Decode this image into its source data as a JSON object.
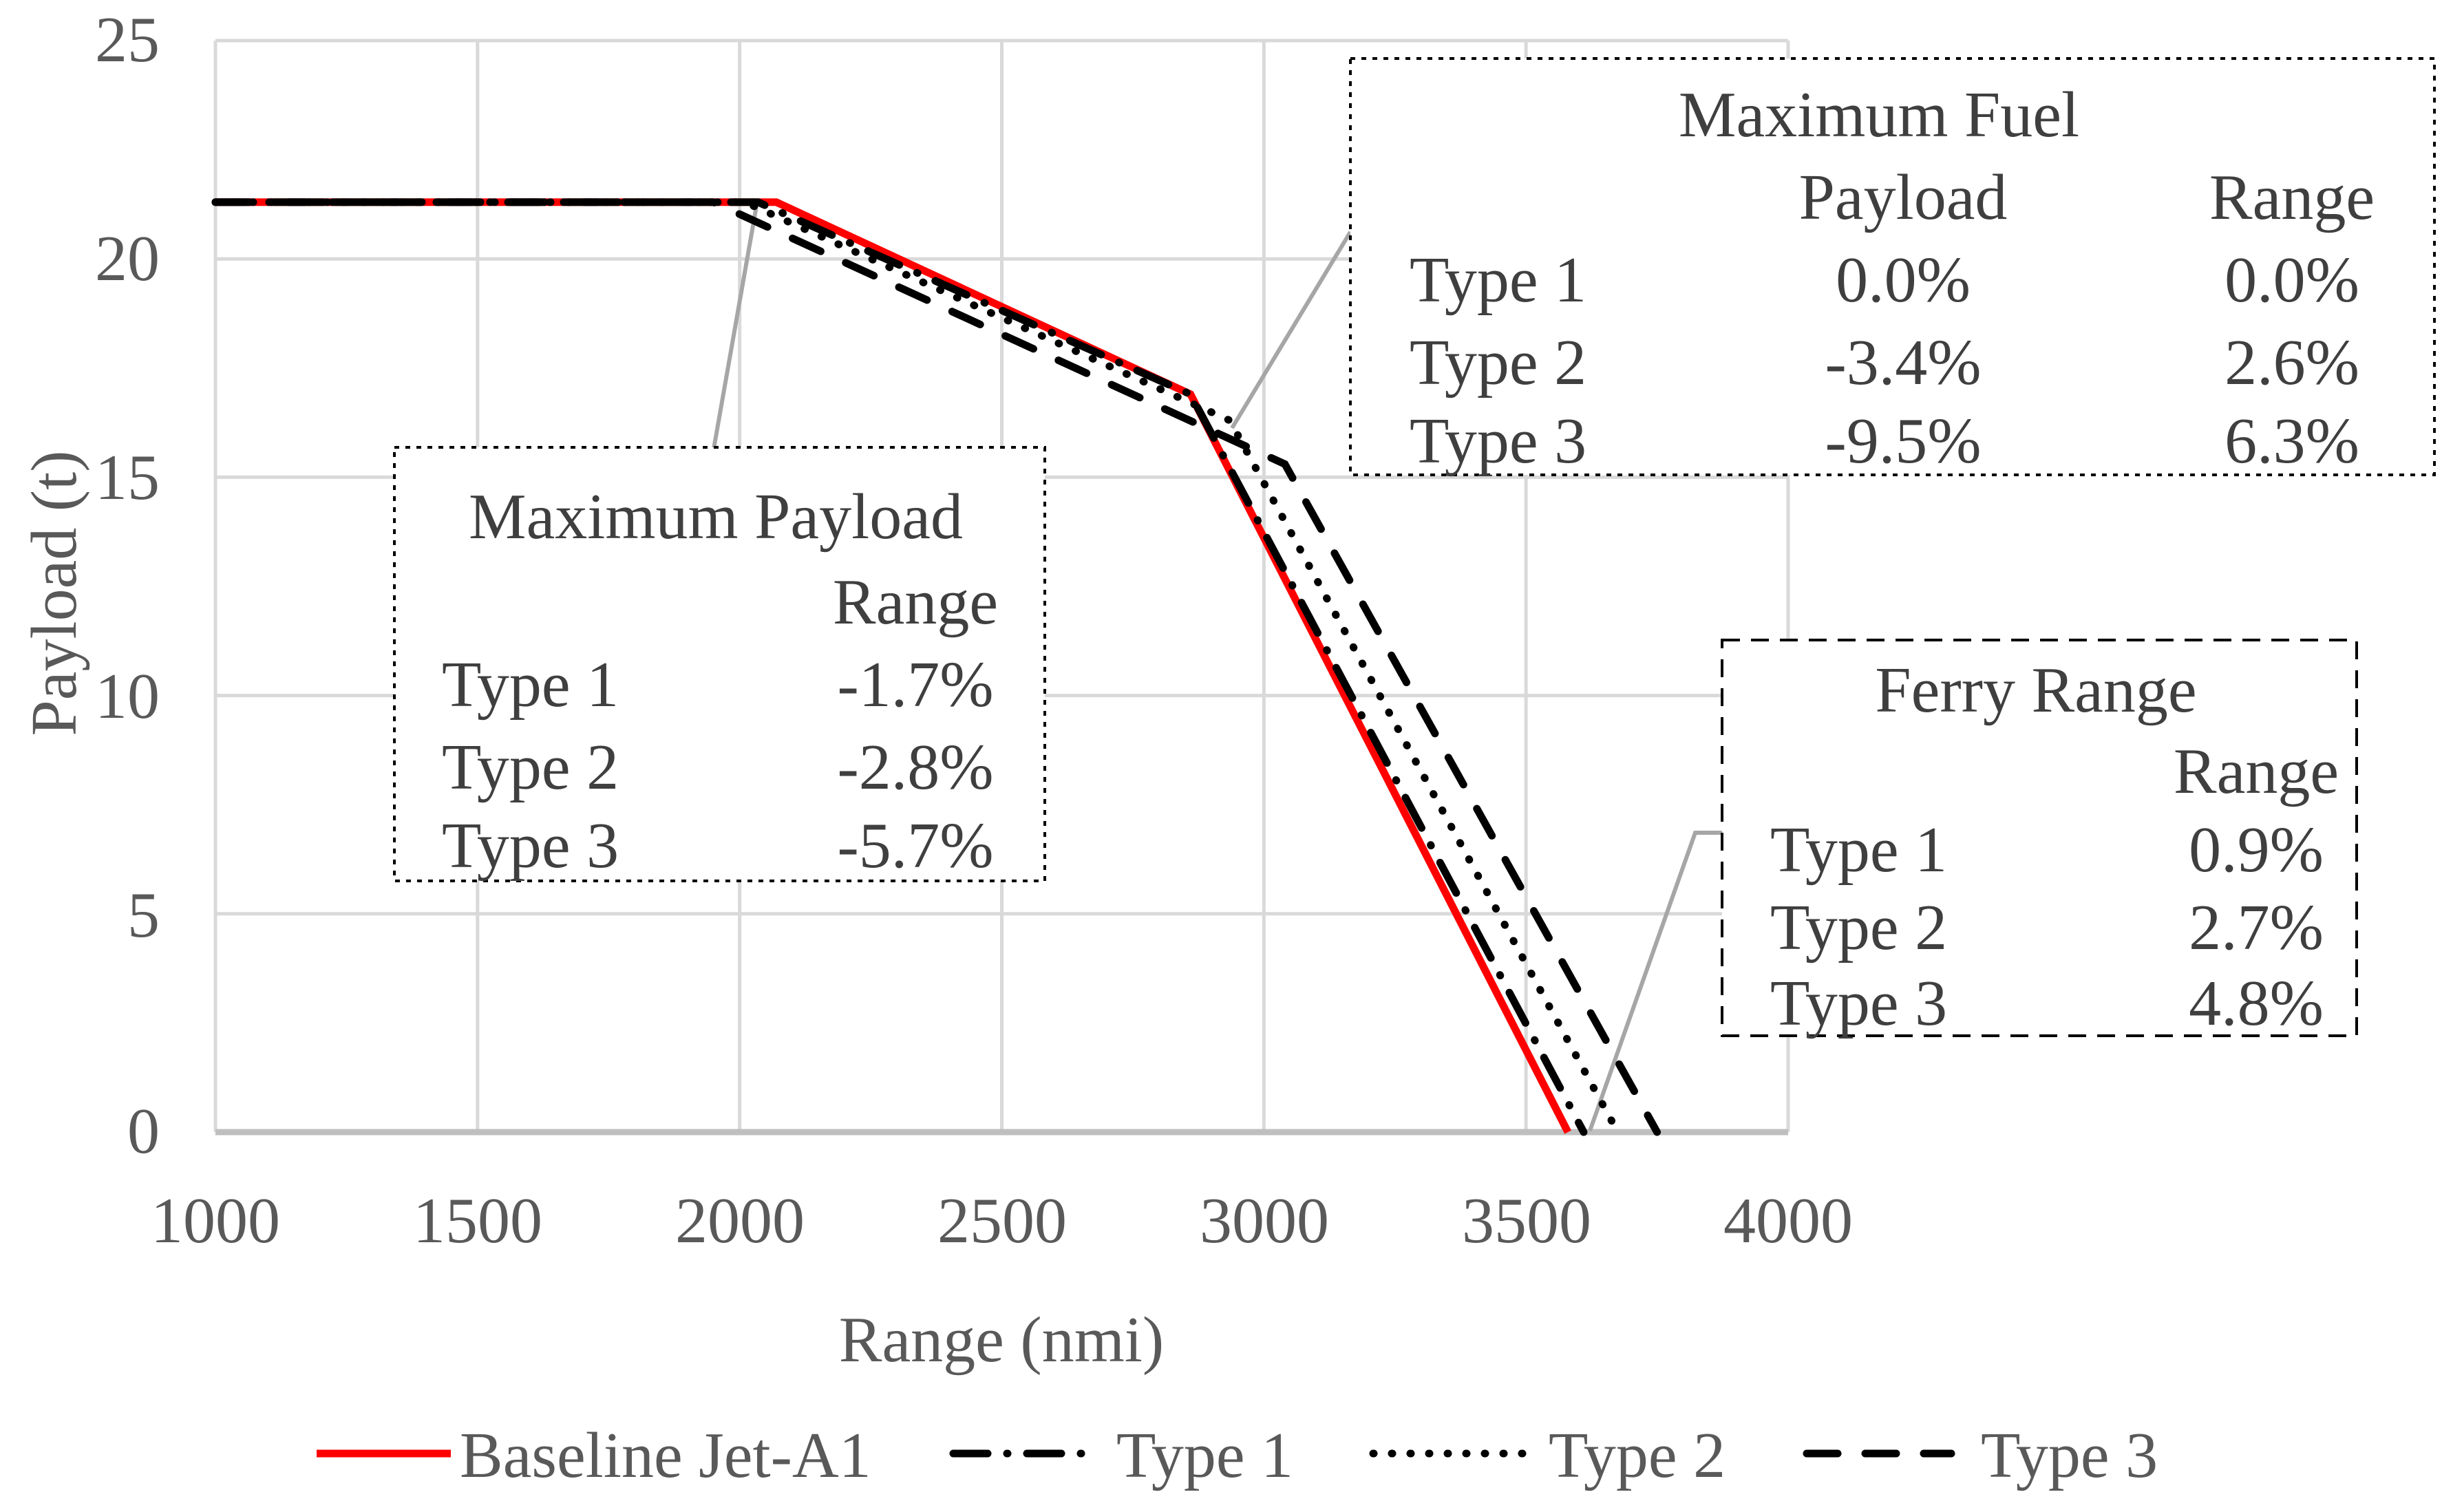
{
  "chart_data": {
    "type": "line",
    "title": "",
    "xlabel": "Range (nmi)",
    "ylabel": "Payload (t)",
    "xlim": [
      1000,
      4000
    ],
    "ylim": [
      0,
      25
    ],
    "x_ticks": [
      1000,
      1500,
      2000,
      2500,
      3000,
      3500,
      4000
    ],
    "y_ticks": [
      0,
      5,
      10,
      15,
      20,
      25
    ],
    "grid": true,
    "legend_position": "bottom",
    "max_payload_t": 21.3,
    "series": [
      {
        "name": "Baseline Jet-A1",
        "color": "#ff0000",
        "style": "solid",
        "points": [
          [
            1000,
            21.3
          ],
          [
            2070,
            21.3
          ],
          [
            2860,
            16.9
          ],
          [
            3580,
            0
          ]
        ]
      },
      {
        "name": "Type 1",
        "color": "#000000",
        "style": "dash-dot",
        "points": [
          [
            1000,
            21.3
          ],
          [
            2035,
            21.3
          ],
          [
            2860,
            16.9
          ],
          [
            3610,
            0
          ]
        ]
      },
      {
        "name": "Type 2",
        "color": "#000000",
        "style": "dotted",
        "points": [
          [
            1000,
            21.3
          ],
          [
            2010,
            21.3
          ],
          [
            2935,
            16.3
          ],
          [
            3675,
            0
          ]
        ]
      },
      {
        "name": "Type 3",
        "color": "#000000",
        "style": "dashed",
        "points": [
          [
            1000,
            21.3
          ],
          [
            1950,
            21.3
          ],
          [
            3040,
            15.3
          ],
          [
            3750,
            0
          ]
        ]
      }
    ]
  },
  "axes": {
    "x_title": "Range (nmi)",
    "y_title": "Payload (t)",
    "x_tick_labels": [
      "1000",
      "1500",
      "2000",
      "2500",
      "3000",
      "3500",
      "4000"
    ],
    "y_tick_labels": [
      "25",
      "20",
      "15",
      "10",
      "5",
      "0"
    ]
  },
  "annotations": {
    "max_payload": {
      "title": "Maximum Payload",
      "col_range": "Range",
      "rows": [
        {
          "label": "Type 1",
          "range": "-1.7%"
        },
        {
          "label": "Type 2",
          "range": "-2.8%"
        },
        {
          "label": "Type 3",
          "range": "-5.7%"
        }
      ]
    },
    "max_fuel": {
      "title": "Maximum Fuel",
      "col_payload": "Payload",
      "col_range": "Range",
      "rows": [
        {
          "label": "Type 1",
          "payload": "0.0%",
          "range": "0.0%"
        },
        {
          "label": "Type 2",
          "payload": "-3.4%",
          "range": "2.6%"
        },
        {
          "label": "Type 3",
          "payload": "-9.5%",
          "range": "6.3%"
        }
      ]
    },
    "ferry_range": {
      "title": "Ferry Range",
      "col_range": "Range",
      "rows": [
        {
          "label": "Type 1",
          "range": "0.9%"
        },
        {
          "label": "Type 2",
          "range": "2.7%"
        },
        {
          "label": "Type 3",
          "range": "4.8%"
        }
      ]
    }
  },
  "colors": {
    "background": "#ffffff",
    "gridline": "#d9d9d9",
    "axis_line": "#bfbfbf",
    "tick_text": "#595959",
    "annotation_text": "#3f3f3f",
    "leader_line": "#a6a6a6",
    "baseline_series": "#ff0000",
    "type_series": "#000000"
  }
}
